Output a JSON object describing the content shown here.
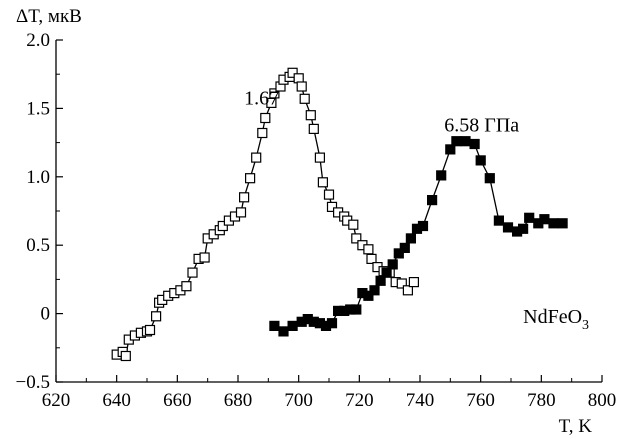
{
  "chart_data": {
    "type": "scatter",
    "ylabel": "ΔT, мкВ",
    "xlabel": "T, K",
    "xlim": [
      620,
      800
    ],
    "ylim": [
      -0.5,
      2.0
    ],
    "x_ticks": [
      620,
      640,
      660,
      680,
      700,
      720,
      740,
      760,
      780,
      800
    ],
    "y_ticks": [
      -0.5,
      0,
      0.5,
      1.0,
      1.5,
      2.0
    ],
    "x_tick_labels": [
      "620",
      "640",
      "660",
      "680",
      "700",
      "720",
      "740",
      "760",
      "780",
      "800"
    ],
    "y_tick_labels": [
      "−0.5",
      "0",
      "0.5",
      "1.0",
      "1.5",
      "2.0"
    ],
    "grid": false,
    "annotations": [
      {
        "text": "1.67",
        "x": 682,
        "y": 1.53
      },
      {
        "text": "6.58 ГПа",
        "x": 748,
        "y": 1.33
      },
      {
        "text": "NdFeO",
        "sub": "3",
        "x": 774,
        "y": -0.07
      }
    ],
    "series": [
      {
        "marker": "open-square",
        "color": "#000000",
        "points": [
          [
            640,
            -0.3
          ],
          [
            642,
            -0.28
          ],
          [
            643,
            -0.31
          ],
          [
            644,
            -0.19
          ],
          [
            646,
            -0.16
          ],
          [
            648,
            -0.14
          ],
          [
            650,
            -0.13
          ],
          [
            651,
            -0.12
          ],
          [
            653,
            -0.02
          ],
          [
            654,
            0.08
          ],
          [
            655,
            0.1
          ],
          [
            657,
            0.13
          ],
          [
            659,
            0.15
          ],
          [
            661,
            0.17
          ],
          [
            663,
            0.2
          ],
          [
            665,
            0.3
          ],
          [
            667,
            0.4
          ],
          [
            669,
            0.41
          ],
          [
            670,
            0.55
          ],
          [
            672,
            0.58
          ],
          [
            674,
            0.61
          ],
          [
            675,
            0.64
          ],
          [
            677,
            0.68
          ],
          [
            679,
            0.71
          ],
          [
            681,
            0.74
          ],
          [
            682,
            0.85
          ],
          [
            684,
            0.99
          ],
          [
            686,
            1.14
          ],
          [
            688,
            1.32
          ],
          [
            689,
            1.43
          ],
          [
            691,
            1.54
          ],
          [
            692,
            1.61
          ],
          [
            694,
            1.66
          ],
          [
            695,
            1.71
          ],
          [
            697,
            1.73
          ],
          [
            698,
            1.76
          ],
          [
            700,
            1.72
          ],
          [
            701,
            1.66
          ],
          [
            702,
            1.57
          ],
          [
            704,
            1.45
          ],
          [
            705,
            1.35
          ],
          [
            707,
            1.14
          ],
          [
            708,
            0.96
          ],
          [
            710,
            0.87
          ],
          [
            711,
            0.78
          ],
          [
            713,
            0.74
          ],
          [
            715,
            0.71
          ],
          [
            716,
            0.68
          ],
          [
            718,
            0.65
          ],
          [
            719,
            0.55
          ],
          [
            721,
            0.5
          ],
          [
            723,
            0.47
          ],
          [
            724,
            0.4
          ],
          [
            726,
            0.34
          ],
          [
            728,
            0.31
          ],
          [
            730,
            0.3
          ],
          [
            732,
            0.23
          ],
          [
            734,
            0.22
          ],
          [
            736,
            0.17
          ],
          [
            738,
            0.23
          ]
        ]
      },
      {
        "marker": "filled-square",
        "color": "#000000",
        "points": [
          [
            692,
            -0.09
          ],
          [
            695,
            -0.13
          ],
          [
            698,
            -0.09
          ],
          [
            701,
            -0.06
          ],
          [
            703,
            -0.04
          ],
          [
            705,
            -0.06
          ],
          [
            707,
            -0.07
          ],
          [
            709,
            -0.09
          ],
          [
            711,
            -0.07
          ],
          [
            713,
            0.02
          ],
          [
            715,
            0.02
          ],
          [
            717,
            0.03
          ],
          [
            719,
            0.03
          ],
          [
            721,
            0.15
          ],
          [
            723,
            0.13
          ],
          [
            725,
            0.17
          ],
          [
            727,
            0.24
          ],
          [
            729,
            0.3
          ],
          [
            731,
            0.36
          ],
          [
            733,
            0.44
          ],
          [
            735,
            0.48
          ],
          [
            737,
            0.55
          ],
          [
            739,
            0.62
          ],
          [
            741,
            0.64
          ],
          [
            744,
            0.83
          ],
          [
            747,
            1.01
          ],
          [
            750,
            1.2
          ],
          [
            752,
            1.26
          ],
          [
            755,
            1.26
          ],
          [
            758,
            1.24
          ],
          [
            760,
            1.12
          ],
          [
            763,
            0.99
          ],
          [
            766,
            0.68
          ],
          [
            769,
            0.63
          ],
          [
            772,
            0.6
          ],
          [
            774,
            0.62
          ],
          [
            776,
            0.7
          ],
          [
            779,
            0.66
          ],
          [
            781,
            0.69
          ],
          [
            784,
            0.66
          ],
          [
            787,
            0.66
          ]
        ]
      }
    ]
  }
}
